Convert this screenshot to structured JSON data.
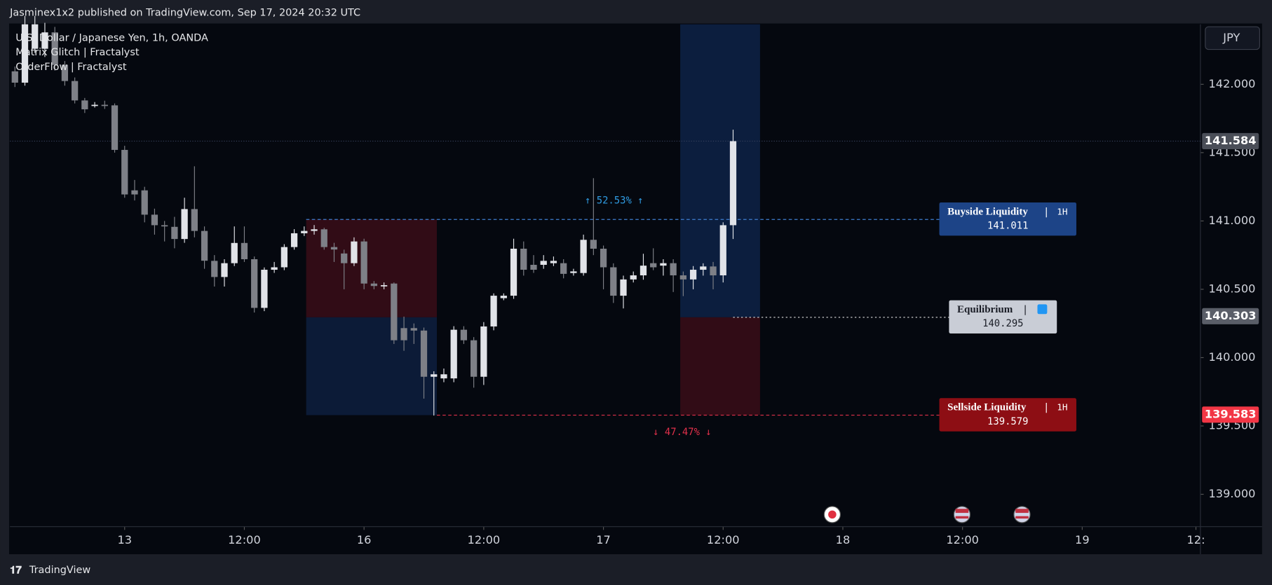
{
  "header": "Jasminex1x2 published on TradingView.com, Sep 17, 2024 20:32 UTC",
  "footer": "TradingView",
  "currency": "JPY",
  "chart_data": {
    "type": "candlestick",
    "legend": [
      "U.S. Dollar / Japanese Yen, 1h, OANDA",
      "Matrix Glitch | Fractalyst",
      "OrderFlow | Fractalyst"
    ],
    "up_color": "#e1e3e8",
    "down_color": "#7e8087",
    "open": [
      142.095,
      142.012,
      142.26,
      142.26,
      142.38,
      142.142,
      142.024,
      141.882,
      141.846,
      141.85,
      141.846,
      141.52,
      141.224,
      141.224,
      141.046,
      140.969,
      140.957,
      140.868,
      141.087,
      140.927,
      140.708,
      140.59,
      140.691,
      140.839,
      140.72,
      140.364,
      140.643,
      140.661,
      140.809,
      140.91,
      140.927,
      140.939,
      140.809,
      140.762,
      140.691,
      140.85,
      140.542,
      140.524,
      140.542,
      140.216,
      140.216,
      140.198,
      139.86,
      139.848,
      139.848,
      140.204,
      140.127,
      139.86,
      140.228,
      140.435,
      140.453,
      140.797,
      140.679,
      140.679,
      140.691,
      140.691,
      140.619,
      140.619,
      140.862,
      140.797,
      140.661,
      140.453,
      140.572,
      140.602,
      140.691,
      140.673,
      140.691,
      140.602,
      140.572,
      140.643,
      140.667,
      140.602,
      140.969
    ],
    "high": [
      142.13,
      142.5,
      142.5,
      142.45,
      142.42,
      142.17,
      142.05,
      141.9,
      141.87,
      141.88,
      141.86,
      141.55,
      141.3,
      141.25,
      141.09,
      141.0,
      141.03,
      141.17,
      141.4,
      140.96,
      140.75,
      140.72,
      140.96,
      140.96,
      140.74,
      140.66,
      140.7,
      140.83,
      140.94,
      140.96,
      140.97,
      140.95,
      140.84,
      140.79,
      140.88,
      140.87,
      140.56,
      140.55,
      140.55,
      140.3,
      140.25,
      140.22,
      139.9,
      139.92,
      140.23,
      140.23,
      140.15,
      140.26,
      140.47,
      140.47,
      140.87,
      140.85,
      140.75,
      140.75,
      140.74,
      140.72,
      140.65,
      140.9,
      141.313,
      140.82,
      140.69,
      140.6,
      140.63,
      140.76,
      140.8,
      140.72,
      140.72,
      140.63,
      140.67,
      140.69,
      140.7,
      140.99,
      141.668
    ],
    "low": [
      141.98,
      141.99,
      142.23,
      142.2,
      142.1,
      141.99,
      141.86,
      141.79,
      141.83,
      141.82,
      141.5,
      141.17,
      141.15,
      140.99,
      140.9,
      140.85,
      140.8,
      140.84,
      140.88,
      140.65,
      140.52,
      140.52,
      140.67,
      140.7,
      140.33,
      140.34,
      140.62,
      140.64,
      140.79,
      140.89,
      140.9,
      140.79,
      140.7,
      140.5,
      140.67,
      140.5,
      140.5,
      140.5,
      140.1,
      140.05,
      140.1,
      139.7,
      139.576,
      139.82,
      139.82,
      140.1,
      139.78,
      139.8,
      140.2,
      140.42,
      140.43,
      140.6,
      140.62,
      140.65,
      140.67,
      140.58,
      140.6,
      140.6,
      140.75,
      140.5,
      140.4,
      140.36,
      140.55,
      140.57,
      140.64,
      140.6,
      140.48,
      140.45,
      140.5,
      140.6,
      140.5,
      140.55,
      140.868
    ],
    "close": [
      142.012,
      142.439,
      142.439,
      142.38,
      142.142,
      142.024,
      141.882,
      141.817,
      141.85,
      141.846,
      141.52,
      141.194,
      141.194,
      141.046,
      140.969,
      140.96,
      140.868,
      141.087,
      140.927,
      140.709,
      140.59,
      140.691,
      140.839,
      140.72,
      140.364,
      140.643,
      140.661,
      140.809,
      140.91,
      140.927,
      140.939,
      140.809,
      140.791,
      140.691,
      140.85,
      140.542,
      140.524,
      140.53,
      140.127,
      140.127,
      140.198,
      139.86,
      139.878,
      139.878,
      140.204,
      140.127,
      139.86,
      140.228,
      140.453,
      140.453,
      140.797,
      140.643,
      140.643,
      140.708,
      140.708,
      140.613,
      140.631,
      140.862,
      140.797,
      140.661,
      140.453,
      140.572,
      140.602,
      140.673,
      140.661,
      140.691,
      140.602,
      140.572,
      140.643,
      140.667,
      140.602,
      140.969,
      141.584
    ],
    "xlim": [
      -0.5,
      118.85
    ],
    "xticks": [
      {
        "value": 11,
        "label": "13"
      },
      {
        "value": 23,
        "label": "12:00"
      },
      {
        "value": 35,
        "label": "16"
      },
      {
        "value": 47,
        "label": "12:00"
      },
      {
        "value": 59,
        "label": "17"
      },
      {
        "value": 71,
        "label": "12:00"
      },
      {
        "value": 83,
        "label": "18"
      },
      {
        "value": 95,
        "label": "12:00"
      },
      {
        "value": 107,
        "label": "19"
      },
      {
        "value": 118.4,
        "label": "12:"
      }
    ],
    "ylim": [
      138.763,
      142.439
    ],
    "yticks": [
      {
        "value": 139,
        "label": "139.000"
      },
      {
        "value": 139.5,
        "label": "139.500"
      },
      {
        "value": 140,
        "label": "140.000"
      },
      {
        "value": 140.5,
        "label": "140.500"
      },
      {
        "value": 141,
        "label": "141.000"
      },
      {
        "value": 141.5,
        "label": "141.500"
      },
      {
        "value": 142,
        "label": "142.000"
      }
    ],
    "last_price": 141.584,
    "equilibrium_tag": 140.303,
    "sellside_tag": 139.583,
    "buyside": {
      "name": "Buyside Liquidity",
      "timeframe": "1H",
      "value": 141.011
    },
    "equilibrium": {
      "name": "Equilibrium",
      "value": 140.295
    },
    "sellside": {
      "name": "Sellside Liquidity",
      "timeframe": "1H",
      "value": 139.579
    },
    "up_pct_label": "↑ 52.53% ↑",
    "down_pct_label": "↓ 47.47% ↓"
  }
}
